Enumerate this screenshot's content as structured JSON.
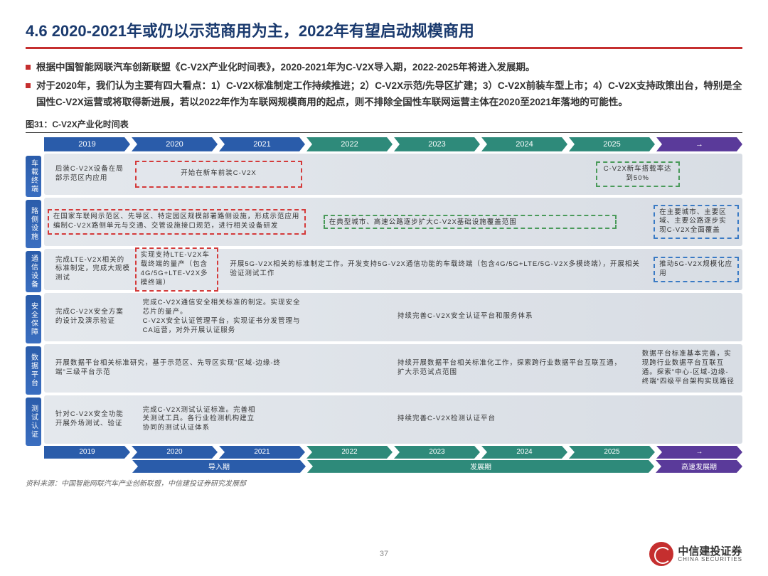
{
  "title": "4.6 2020-2021年或仍以示范商用为主，2022年有望启动规模商用",
  "b1": "根据中国智能网联汽车创新联盟《C-V2X产业化时间表》，2020-2021年为C-V2X导入期，2022-2025年将进入发展期。",
  "b2": "对于2020年，我们认为主要有四大看点：1）C-V2X标准制定工作持续推进；2）C-V2X示范/先导区扩建；3）C-V2X前装车型上市；4）C-V2X支持政策出台，特别是全国性C-V2X运营或将取得新进展，若以2022年作为车联网规模商用的起点，则不排除全国性车联网运营主体在2020至2021年落地的可能性。",
  "figcap": "图31：C-V2X产业化时间表",
  "years": [
    "2019",
    "2020",
    "2021",
    "2022",
    "2023",
    "2024",
    "2025",
    "→"
  ],
  "year_colors": [
    "#2a5caa",
    "#2a5caa",
    "#2a5caa",
    "#2e8a7a",
    "#2e8a7a",
    "#2e8a7a",
    "#2e8a7a",
    "#5a3a9a"
  ],
  "cats": [
    "车载终端",
    "路侧设施",
    "通信设备",
    "安全保障",
    "数据平台",
    "测试认证"
  ],
  "cat_heights": [
    58,
    68,
    58,
    68,
    68,
    68
  ],
  "phases": [
    {
      "label": "",
      "w": 12.5,
      "color": "transparent"
    },
    {
      "label": "导入期",
      "w": 25,
      "color": "#2a5caa"
    },
    {
      "label": "发展期",
      "w": 50,
      "color": "#2e8a7a"
    },
    {
      "label": "高速发展期",
      "w": 12.5,
      "color": "#5a3a9a"
    }
  ],
  "r1a": "后装C-V2X设备在局部示范区内应用",
  "r1b": "开始在新车前装C-V2X",
  "r1c": "C-V2X新车搭载率达到50%",
  "r2a": "在国家车联网示范区、先导区、特定园区规模部署路侧设施，形成示范应用\n编制C-V2X路侧单元与交通、交管设施接口规范，进行相关设备研发",
  "r2b": "在典型城市、高速公路逐步扩大C-V2X基础设施覆盖范围",
  "r2c": "在主要城市、主要区域、主要公路逐步实现C-V2X全面覆盖",
  "r3a": "完成LTE-V2X相关的标准制定，完成大规模测试",
  "r3b": "实现支持LTE-V2X车载终端的量产（包含4G/5G+LTE-V2X多模终端）",
  "r3c": "开展5G-V2X相关的标准制定工作。开发支持5G-V2X通信功能的车载终端（包含4G/5G+LTE/5G-V2X多模终端），开展相关验证测试工作",
  "r3d": "推动5G-V2X规模化应用",
  "r4a": "完成C-V2X安全方案的设计及演示验证",
  "r4b": "完成C-V2X通信安全相关标准的制定。实现安全芯片的量产。\nC-V2X安全认证管理平台，实现证书分发管理与CA运营，对外开展认证服务",
  "r4c": "持续完善C-V2X安全认证平台和服务体系",
  "r5a": "开展数据平台相关标准研究，基于示范区、先导区实现\"区域-边缘-终端\"三级平台示范",
  "r5b": "持续开展数据平台相关标准化工作，探索跨行业数据平台互联互通，扩大示范试点范围",
  "r5c": "数据平台标准基本完善，实现跨行业数据平台互联互通。探索\"中心-区域-边缘-终端\"四级平台架构实现路径",
  "r6a": "针对C-V2X安全功能开展外场测试、验证",
  "r6b": "完成C-V2X测试认证标准。完善相关测试工具。各行业检测机构建立协同的测试认证体系",
  "r6c": "持续完善C-V2X检测认证平台",
  "source": "资料来源：中国智能网联汽车产业创新联盟，中信建投证券研究发展部",
  "pagenum": "37",
  "logo_cn": "中信建投证券",
  "logo_en": "CHINA SECURITIES"
}
